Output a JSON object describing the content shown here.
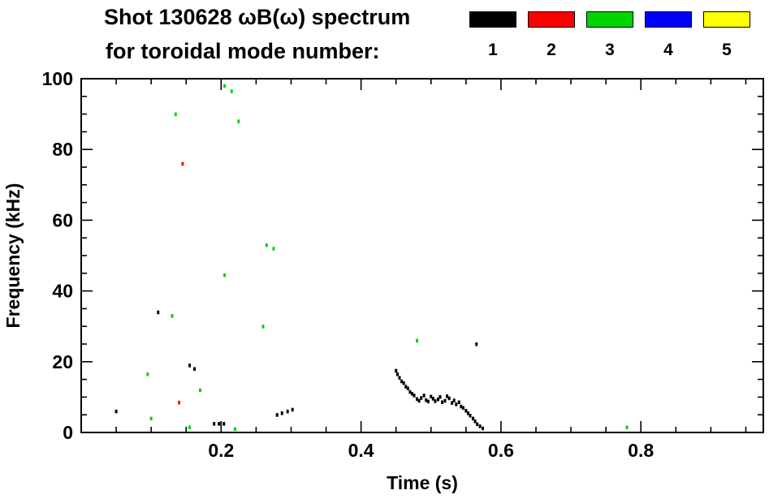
{
  "title": {
    "line1": "Shot 130628 ωB(ω) spectrum",
    "line2": "for toroidal mode number:"
  },
  "legend": [
    {
      "label": "1",
      "color": "#000000"
    },
    {
      "label": "2",
      "color": "#ff0000"
    },
    {
      "label": "3",
      "color": "#00d400"
    },
    {
      "label": "4",
      "color": "#0000ff"
    },
    {
      "label": "5",
      "color": "#ffff00"
    }
  ],
  "chart_data": {
    "type": "scatter",
    "title": "Shot 130628 ωB(ω) spectrum for toroidal mode number",
    "xlabel": "Time (s)",
    "ylabel": "Frequency (kHz)",
    "xlim": [
      0.0,
      0.975
    ],
    "ylim": [
      0,
      100
    ],
    "xticks": [
      0.2,
      0.4,
      0.6,
      0.8
    ],
    "yticks": [
      0,
      20,
      40,
      60,
      80,
      100
    ],
    "x_minor_step": 0.05,
    "y_minor_step": 5,
    "grid": false,
    "legend_position": "top-right",
    "series": [
      {
        "name": "1",
        "color": "#000000",
        "points": [
          [
            0.05,
            6
          ],
          [
            0.11,
            34
          ],
          [
            0.155,
            19
          ],
          [
            0.162,
            18
          ],
          [
            0.19,
            2.5
          ],
          [
            0.197,
            2.5
          ],
          [
            0.204,
            2.5
          ],
          [
            0.28,
            5
          ],
          [
            0.287,
            5.5
          ],
          [
            0.295,
            6
          ],
          [
            0.302,
            6.5
          ],
          [
            0.45,
            17.5
          ],
          [
            0.452,
            16.5
          ],
          [
            0.455,
            15.5
          ],
          [
            0.458,
            14.5
          ],
          [
            0.461,
            14
          ],
          [
            0.464,
            13
          ],
          [
            0.467,
            12.5
          ],
          [
            0.47,
            11.5
          ],
          [
            0.473,
            11
          ],
          [
            0.476,
            10.5
          ],
          [
            0.48,
            9.5
          ],
          [
            0.483,
            9
          ],
          [
            0.486,
            9.8
          ],
          [
            0.49,
            10.5
          ],
          [
            0.493,
            9.2
          ],
          [
            0.496,
            8.8
          ],
          [
            0.5,
            10.2
          ],
          [
            0.503,
            9.6
          ],
          [
            0.506,
            8.9
          ],
          [
            0.51,
            9.4
          ],
          [
            0.513,
            10.1
          ],
          [
            0.516,
            8.6
          ],
          [
            0.52,
            9
          ],
          [
            0.523,
            10.3
          ],
          [
            0.526,
            9.7
          ],
          [
            0.53,
            8.4
          ],
          [
            0.533,
            9.1
          ],
          [
            0.536,
            8
          ],
          [
            0.54,
            8.6
          ],
          [
            0.543,
            7.4
          ],
          [
            0.546,
            7
          ],
          [
            0.55,
            6.2
          ],
          [
            0.553,
            5.5
          ],
          [
            0.556,
            4.8
          ],
          [
            0.56,
            4
          ],
          [
            0.563,
            3.2
          ],
          [
            0.566,
            2.4
          ],
          [
            0.57,
            1.8
          ],
          [
            0.574,
            1.2
          ],
          [
            0.565,
            25
          ]
        ]
      },
      {
        "name": "2",
        "color": "#ff0000",
        "points": [
          [
            0.145,
            76
          ],
          [
            0.14,
            8.5
          ]
        ]
      },
      {
        "name": "3",
        "color": "#00d400",
        "points": [
          [
            0.205,
            98
          ],
          [
            0.215,
            96.5
          ],
          [
            0.135,
            90
          ],
          [
            0.225,
            88
          ],
          [
            0.265,
            53
          ],
          [
            0.275,
            52
          ],
          [
            0.205,
            44.5
          ],
          [
            0.13,
            33
          ],
          [
            0.26,
            30
          ],
          [
            0.48,
            26
          ],
          [
            0.095,
            16.5
          ],
          [
            0.17,
            12
          ],
          [
            0.1,
            4
          ],
          [
            0.155,
            1.5
          ],
          [
            0.22,
            1
          ],
          [
            0.78,
            1.5
          ]
        ]
      },
      {
        "name": "4",
        "color": "#0000ff",
        "points": []
      },
      {
        "name": "5",
        "color": "#ffff00",
        "points": []
      }
    ]
  }
}
